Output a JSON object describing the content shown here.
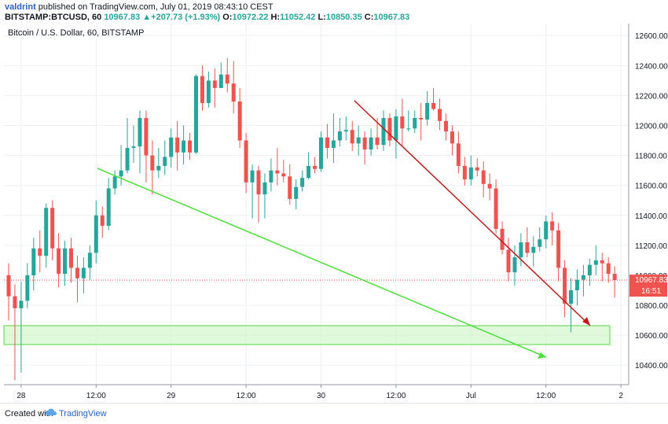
{
  "header": {
    "publisher": "valdrint",
    "published_text": "published on TradingView.com, July 01, 2019 08:43:10 CEST",
    "symbol": "BITSTAMP:BTCUSD, 60",
    "last": "10967.83",
    "change": "+207.73 (+1.93%)",
    "o_label": "O:",
    "o": "10972.22",
    "h_label": "H:",
    "h": "11052.42",
    "l_label": "L:",
    "l": "10850.35",
    "c_label": "C:",
    "c": "10967.83"
  },
  "footer": {
    "created_with": "Created with",
    "brand": "TradingView"
  },
  "colors": {
    "up": "#26a69a",
    "down": "#ef5350",
    "support_line": "#4cdf3a",
    "resistance_line": "#c11d1d",
    "zone": "#c9f5c2",
    "price_line": "#ef5350",
    "grid": "#eef0f4"
  },
  "chart_data": {
    "type": "candlestick",
    "title": "Bitcoin / U.S. Dollar, 60, BITSTAMP",
    "ylim": [
      10270,
      12680
    ],
    "y_ticks": [
      "12600.00",
      "12400.00",
      "12200.00",
      "12000.00",
      "11800.00",
      "11600.00",
      "11400.00",
      "11200.00",
      "11000.00",
      "10800.00",
      "10600.00",
      "10400.00"
    ],
    "x_ticks": [
      "28",
      "12:00",
      "29",
      "12:00",
      "30",
      "12:00",
      "Jul",
      "12:00",
      "2"
    ],
    "x_tick_index": [
      2,
      14,
      26,
      38,
      50,
      62,
      74,
      86,
      98
    ],
    "last_price_label": "10967.83",
    "countdown_label": "16:51",
    "last_price": 10967.83,
    "candles": [
      [
        11000,
        10860,
        11080,
        10700
      ],
      [
        10860,
        10780,
        10940,
        10300
      ],
      [
        10780,
        10830,
        10960,
        10350
      ],
      [
        10830,
        11000,
        11080,
        10780
      ],
      [
        11000,
        11180,
        11250,
        10900
      ],
      [
        11180,
        11130,
        11300,
        11020
      ],
      [
        11130,
        11450,
        11480,
        11050
      ],
      [
        11450,
        11180,
        11500,
        11100
      ],
      [
        11180,
        11010,
        11280,
        10920
      ],
      [
        11010,
        11180,
        11230,
        10930
      ],
      [
        11180,
        11050,
        11250,
        10950
      ],
      [
        11050,
        10980,
        11130,
        10820
      ],
      [
        10980,
        11050,
        11120,
        10880
      ],
      [
        11050,
        11150,
        11200,
        10970
      ],
      [
        11150,
        11400,
        11500,
        11080
      ],
      [
        11400,
        11330,
        11460,
        11250
      ],
      [
        11330,
        11580,
        11650,
        11300
      ],
      [
        11580,
        11660,
        11700,
        11540
      ],
      [
        11660,
        11700,
        11870,
        11600
      ],
      [
        11700,
        11850,
        12050,
        11680
      ],
      [
        11850,
        11860,
        12000,
        11750
      ],
      [
        11860,
        12050,
        12100,
        11680
      ],
      [
        12050,
        11800,
        12100,
        11620
      ],
      [
        11800,
        11700,
        11900,
        11540
      ],
      [
        11700,
        11730,
        11850,
        11650
      ],
      [
        11730,
        11790,
        11900,
        11670
      ],
      [
        11790,
        11920,
        11980,
        11720
      ],
      [
        11920,
        11820,
        12030,
        11700
      ],
      [
        11820,
        11900,
        12000,
        11740
      ],
      [
        11900,
        11820,
        11950,
        11770
      ],
      [
        11820,
        12330,
        12340,
        11810
      ],
      [
        12330,
        12150,
        12400,
        12100
      ],
      [
        12150,
        12300,
        12360,
        12120
      ],
      [
        12300,
        12250,
        12380,
        12120
      ],
      [
        12250,
        12340,
        12420,
        12260
      ],
      [
        12340,
        12280,
        12450,
        12220
      ],
      [
        12280,
        12160,
        12430,
        12080
      ],
      [
        12160,
        11900,
        12250,
        11850
      ],
      [
        11900,
        11620,
        11950,
        11550
      ],
      [
        11620,
        11700,
        11740,
        11380
      ],
      [
        11700,
        11540,
        11730,
        11350
      ],
      [
        11540,
        11620,
        11680,
        11380
      ],
      [
        11620,
        11700,
        11780,
        11560
      ],
      [
        11700,
        11680,
        11850,
        11600
      ],
      [
        11680,
        11660,
        11770,
        11620
      ],
      [
        11660,
        11510,
        11740,
        11470
      ],
      [
        11510,
        11590,
        11640,
        11440
      ],
      [
        11590,
        11650,
        11700,
        11560
      ],
      [
        11650,
        11730,
        11820,
        11640
      ],
      [
        11730,
        11710,
        11790,
        11680
      ],
      [
        11710,
        11920,
        11960,
        11690
      ],
      [
        11920,
        11850,
        12010,
        11780
      ],
      [
        11850,
        11900,
        12080,
        11750
      ],
      [
        11900,
        11960,
        12050,
        11860
      ],
      [
        11960,
        11970,
        12060,
        11900
      ],
      [
        11970,
        11880,
        12030,
        11830
      ],
      [
        11880,
        11920,
        12000,
        11800
      ],
      [
        11920,
        11840,
        11960,
        11740
      ],
      [
        11840,
        11920,
        11980,
        11800
      ],
      [
        11920,
        11870,
        12050,
        11840
      ],
      [
        11870,
        12050,
        12100,
        11830
      ],
      [
        12050,
        11900,
        12080,
        11860
      ],
      [
        11900,
        12060,
        12110,
        11780
      ],
      [
        12060,
        11980,
        12180,
        11860
      ],
      [
        11980,
        11980,
        12100,
        11960
      ],
      [
        11980,
        12050,
        12100,
        11950
      ],
      [
        12050,
        12040,
        12150,
        11900
      ],
      [
        12040,
        12150,
        12230,
        12000
      ],
      [
        12150,
        12110,
        12250,
        12100
      ],
      [
        12110,
        12030,
        12180,
        11970
      ],
      [
        12030,
        11960,
        12080,
        11900
      ],
      [
        11960,
        11880,
        12000,
        11800
      ],
      [
        11880,
        11730,
        11960,
        11680
      ],
      [
        11730,
        11640,
        11790,
        11600
      ],
      [
        11640,
        11720,
        11800,
        11600
      ],
      [
        11720,
        11700,
        11780,
        11660
      ],
      [
        11700,
        11610,
        11760,
        11520
      ],
      [
        11610,
        11580,
        11680,
        11500
      ],
      [
        11580,
        11310,
        11640,
        11280
      ],
      [
        11310,
        11170,
        11360,
        11140
      ],
      [
        11170,
        11020,
        11250,
        10960
      ],
      [
        11020,
        11120,
        11200,
        10930
      ],
      [
        11120,
        11220,
        11280,
        11060
      ],
      [
        11220,
        11150,
        11320,
        11120
      ],
      [
        11150,
        11190,
        11260,
        11060
      ],
      [
        11190,
        11240,
        11320,
        11160
      ],
      [
        11240,
        11360,
        11400,
        11180
      ],
      [
        11360,
        11300,
        11420,
        11200
      ],
      [
        11300,
        11050,
        11350,
        10960
      ],
      [
        11050,
        10810,
        11100,
        10720
      ],
      [
        10810,
        10900,
        10980,
        10620
      ],
      [
        10900,
        10970,
        11040,
        10800
      ],
      [
        10970,
        11000,
        11070,
        10860
      ],
      [
        11000,
        11070,
        11110,
        10930
      ],
      [
        11070,
        11100,
        11200,
        11000
      ],
      [
        11100,
        11080,
        11150,
        10960
      ],
      [
        11080,
        11010,
        11120,
        10950
      ],
      [
        11010,
        10968,
        11060,
        10850
      ]
    ]
  }
}
